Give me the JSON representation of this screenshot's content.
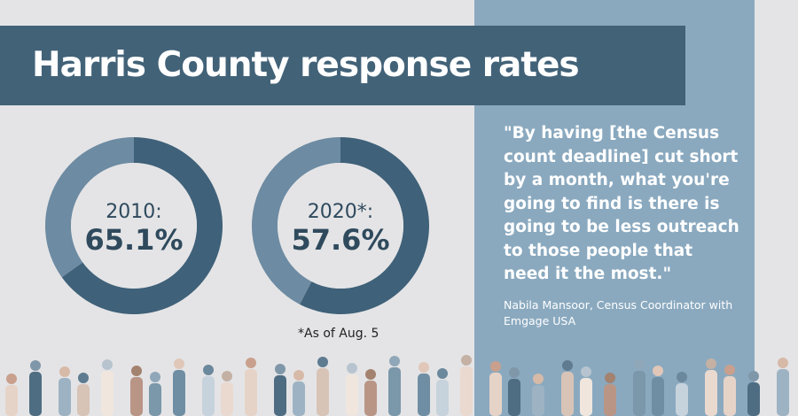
{
  "title": "Harris County response rates",
  "chart_data": [
    {
      "type": "pie",
      "label": "2010:",
      "value_label": "65.1%",
      "values": [
        65.1,
        34.9
      ],
      "colors": [
        "#3f6179",
        "#6d8ba2"
      ]
    },
    {
      "type": "pie",
      "label": "2020*:",
      "value_label": "57.6%",
      "values": [
        57.6,
        42.4
      ],
      "colors": [
        "#3f6179",
        "#6d8ba2"
      ]
    }
  ],
  "footnote": "*As of Aug. 5",
  "quote": "\"By having [the Census count deadline] cut short by a month, what you're going to find is there is going to be less outreach to those people that need it the most.\"",
  "attribution": "Nabila Mansoor, Census Coordinator with Emgage USA",
  "colors": {
    "background": "#e4e4e6",
    "panel": "#8aa9bf",
    "title_bar": "#426278",
    "donut_dark": "#3f6179",
    "donut_light": "#6d8ba2"
  }
}
